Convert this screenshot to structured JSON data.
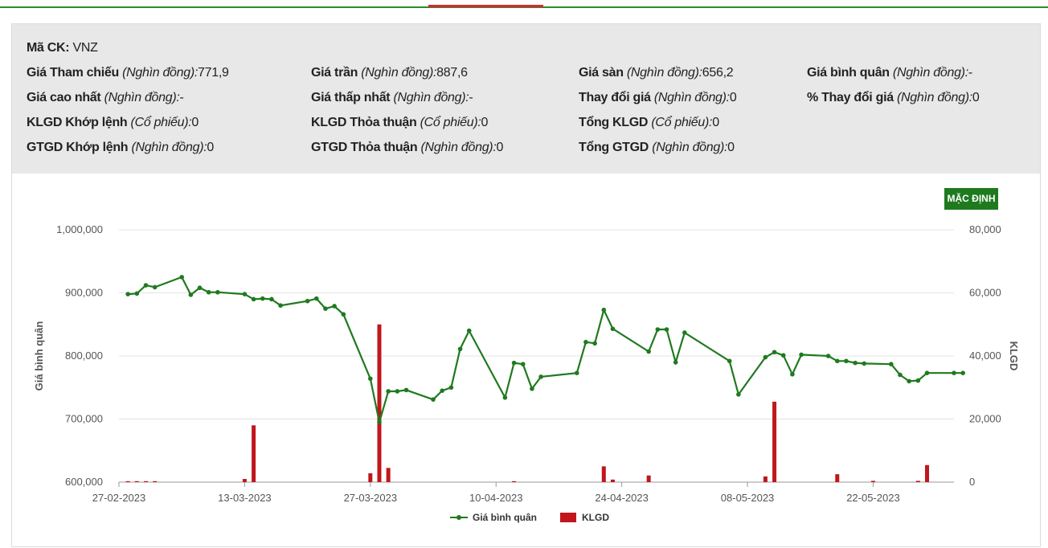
{
  "symbol_label": "Mã CK:",
  "symbol": "VNZ",
  "info": [
    [
      {
        "label": "Giá Tham chiếu",
        "unit": "(Nghìn đồng):",
        "value": "771,9"
      },
      {
        "label": "Giá trần",
        "unit": "(Nghìn đồng):",
        "value": "887,6"
      },
      {
        "label": "Giá sàn",
        "unit": "(Nghìn đồng):",
        "value": "656,2"
      },
      {
        "label": "Giá bình quân",
        "unit": "(Nghìn đồng):",
        "value": "-"
      }
    ],
    [
      {
        "label": "Giá cao nhất",
        "unit": "(Nghìn đồng):",
        "value": "-"
      },
      {
        "label": "Giá thấp nhất",
        "unit": "(Nghìn đồng):",
        "value": "-"
      },
      {
        "label": "Thay đổi giá",
        "unit": "(Nghìn đồng):",
        "value": "0"
      },
      {
        "label": "% Thay đổi giá",
        "unit": "(Nghìn đồng):",
        "value": "0"
      }
    ],
    [
      {
        "label": "KLGD Khớp lệnh",
        "unit": "(Cổ phiếu):",
        "value": "0"
      },
      {
        "label": "KLGD Thỏa thuận",
        "unit": "(Cổ phiếu):",
        "value": "0"
      },
      {
        "label": "Tổng KLGD",
        "unit": "(Cổ phiếu):",
        "value": "0"
      }
    ],
    [
      {
        "label": "GTGD Khớp lệnh",
        "unit": "(Nghìn đồng):",
        "value": "0"
      },
      {
        "label": "GTGD Thỏa thuận",
        "unit": "(Nghìn đồng):",
        "value": "0"
      },
      {
        "label": "Tổng GTGD",
        "unit": "(Nghìn đồng):",
        "value": "0"
      }
    ]
  ],
  "reset_button": "MẶC ĐỊNH",
  "colors": {
    "price": "#1f7a1f",
    "volume": "#c0161c",
    "accent_green": "#2e8b2e",
    "accent_red": "#d9272e"
  },
  "chart_data": {
    "type": "line+bar",
    "ylabel_left": "Giá bình quân",
    "ylabel_right": "KLGD",
    "ylim_left": [
      600000,
      1000000
    ],
    "ylim_right": [
      0,
      80000
    ],
    "yticks_left": [
      "1,000,000",
      "900,000",
      "800,000",
      "700,000",
      "600,000"
    ],
    "yticks_right": [
      "80,000",
      "60,000",
      "40,000",
      "20,000",
      "0"
    ],
    "x_range": [
      "2023-02-27",
      "2023-05-31"
    ],
    "xticks": [
      {
        "date": "2023-02-27",
        "label": "27-02-2023"
      },
      {
        "date": "2023-03-13",
        "label": "13-03-2023"
      },
      {
        "date": "2023-03-27",
        "label": "27-03-2023"
      },
      {
        "date": "2023-04-10",
        "label": "10-04-2023"
      },
      {
        "date": "2023-04-24",
        "label": "24-04-2023"
      },
      {
        "date": "2023-05-08",
        "label": "08-05-2023"
      },
      {
        "date": "2023-05-22",
        "label": "22-05-2023"
      }
    ],
    "legend": [
      "Giá bình quân",
      "KLGD"
    ],
    "legend_position": "bottom",
    "grid": true,
    "price": [
      [
        "2023-02-28",
        898000
      ],
      [
        "2023-03-01",
        899000
      ],
      [
        "2023-03-02",
        912000
      ],
      [
        "2023-03-03",
        909000
      ],
      [
        "2023-03-06",
        925000
      ],
      [
        "2023-03-07",
        897000
      ],
      [
        "2023-03-08",
        908000
      ],
      [
        "2023-03-09",
        901000
      ],
      [
        "2023-03-10",
        901000
      ],
      [
        "2023-03-13",
        898000
      ],
      [
        "2023-03-14",
        890000
      ],
      [
        "2023-03-15",
        891000
      ],
      [
        "2023-03-16",
        890000
      ],
      [
        "2023-03-17",
        880000
      ],
      [
        "2023-03-20",
        887000
      ],
      [
        "2023-03-21",
        891000
      ],
      [
        "2023-03-22",
        875000
      ],
      [
        "2023-03-23",
        879000
      ],
      [
        "2023-03-24",
        866000
      ],
      [
        "2023-03-27",
        764000
      ],
      [
        "2023-03-28",
        695000
      ],
      [
        "2023-03-29",
        744000
      ],
      [
        "2023-03-30",
        744000
      ],
      [
        "2023-03-31",
        746000
      ],
      [
        "2023-04-03",
        731000
      ],
      [
        "2023-04-04",
        745000
      ],
      [
        "2023-04-05",
        750000
      ],
      [
        "2023-04-06",
        811000
      ],
      [
        "2023-04-07",
        840000
      ],
      [
        "2023-04-11",
        734000
      ],
      [
        "2023-04-12",
        789000
      ],
      [
        "2023-04-13",
        787000
      ],
      [
        "2023-04-14",
        748000
      ],
      [
        "2023-04-15",
        767000
      ],
      [
        "2023-04-19",
        773000
      ],
      [
        "2023-04-20",
        822000
      ],
      [
        "2023-04-21",
        820000
      ],
      [
        "2023-04-22",
        873000
      ],
      [
        "2023-04-23",
        843000
      ],
      [
        "2023-04-27",
        807000
      ],
      [
        "2023-04-28",
        842000
      ],
      [
        "2023-04-29",
        842000
      ],
      [
        "2023-04-30",
        790000
      ],
      [
        "2023-05-01",
        837000
      ],
      [
        "2023-05-06",
        792000
      ],
      [
        "2023-05-07",
        739000
      ],
      [
        "2023-05-10",
        798000
      ],
      [
        "2023-05-11",
        806000
      ],
      [
        "2023-05-12",
        801000
      ],
      [
        "2023-05-13",
        771000
      ],
      [
        "2023-05-14",
        802000
      ],
      [
        "2023-05-17",
        800000
      ],
      [
        "2023-05-18",
        792000
      ],
      [
        "2023-05-19",
        792000
      ],
      [
        "2023-05-20",
        789000
      ],
      [
        "2023-05-21",
        788000
      ],
      [
        "2023-05-24",
        787000
      ],
      [
        "2023-05-25",
        770000
      ],
      [
        "2023-05-26",
        760000
      ],
      [
        "2023-05-27",
        761000
      ],
      [
        "2023-05-28",
        773000
      ],
      [
        "2023-05-31",
        773000
      ],
      [
        "2023-06-01",
        773000
      ]
    ],
    "volume": [
      [
        "2023-02-28",
        300
      ],
      [
        "2023-03-01",
        300
      ],
      [
        "2023-03-02",
        300
      ],
      [
        "2023-03-03",
        300
      ],
      [
        "2023-03-13",
        1000
      ],
      [
        "2023-03-14",
        18000
      ],
      [
        "2023-03-27",
        2800
      ],
      [
        "2023-03-28",
        50000
      ],
      [
        "2023-03-29",
        4500
      ],
      [
        "2023-04-12",
        300
      ],
      [
        "2023-04-22",
        5000
      ],
      [
        "2023-04-23",
        800
      ],
      [
        "2023-04-27",
        2100
      ],
      [
        "2023-05-10",
        1800
      ],
      [
        "2023-05-11",
        25500
      ],
      [
        "2023-05-18",
        2500
      ],
      [
        "2023-05-22",
        400
      ],
      [
        "2023-05-27",
        400
      ],
      [
        "2023-05-28",
        5400
      ]
    ]
  }
}
